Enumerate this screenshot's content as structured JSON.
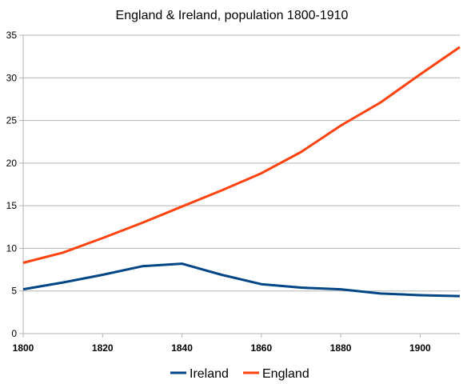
{
  "chart_data": {
    "type": "line",
    "title": "England & Ireland, population 1800-1910",
    "xlabel": "",
    "ylabel": "",
    "x": [
      1800,
      1810,
      1820,
      1830,
      1840,
      1850,
      1860,
      1870,
      1880,
      1890,
      1900,
      1910
    ],
    "xlim": [
      1800,
      1910
    ],
    "ylim": [
      0,
      35
    ],
    "x_ticks": [
      1800,
      1820,
      1840,
      1860,
      1880,
      1900
    ],
    "y_ticks": [
      0,
      5,
      10,
      15,
      20,
      25,
      30,
      35
    ],
    "grid": "horizontal",
    "legend_position": "bottom",
    "series": [
      {
        "name": "Ireland",
        "color": "#004586",
        "values": [
          5.2,
          6.0,
          6.9,
          7.9,
          8.2,
          6.9,
          5.8,
          5.4,
          5.2,
          4.7,
          4.5,
          4.4
        ]
      },
      {
        "name": "England",
        "color": "#ff420e",
        "values": [
          8.3,
          9.5,
          11.2,
          13.0,
          14.9,
          16.8,
          18.8,
          21.3,
          24.4,
          27.1,
          30.4,
          33.6
        ]
      }
    ]
  }
}
